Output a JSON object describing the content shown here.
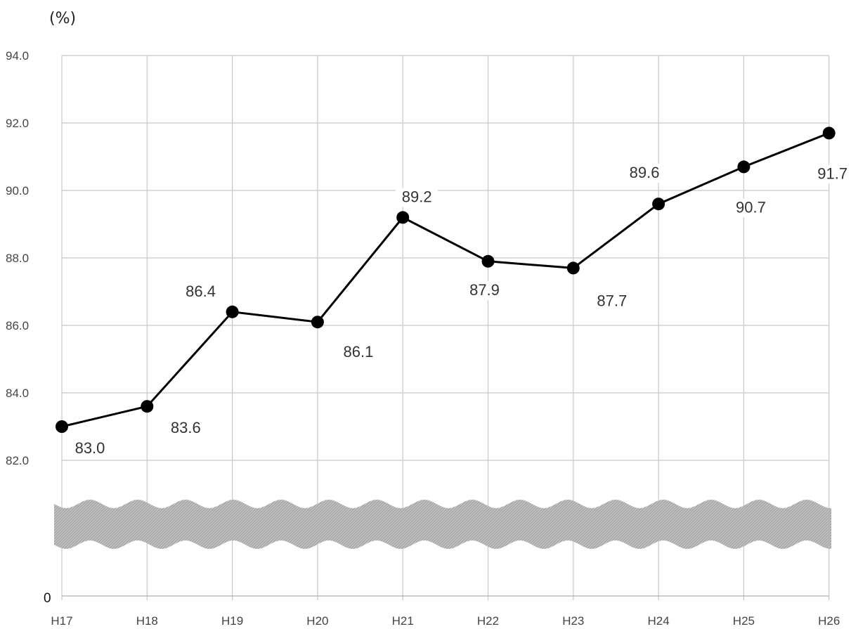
{
  "chart_data": {
    "type": "line",
    "unit_label": "(%)",
    "categories": [
      "H17",
      "H18",
      "H19",
      "H20",
      "H21",
      "H22",
      "H23",
      "H24",
      "H25",
      "H26"
    ],
    "values": [
      83.0,
      83.6,
      86.4,
      86.1,
      89.2,
      87.9,
      87.7,
      89.6,
      90.7,
      91.7
    ],
    "data_labels": [
      "83.0",
      "83.6",
      "86.4",
      "86.1",
      "89.2",
      "87.9",
      "87.7",
      "89.6",
      "90.7",
      "91.7"
    ],
    "y_ticks": [
      "82.0",
      "84.0",
      "86.0",
      "88.0",
      "90.0",
      "92.0",
      "94.0"
    ],
    "y_tick_values": [
      82,
      84,
      86,
      88,
      90,
      92,
      94
    ],
    "y_axis_origin_label": "0",
    "ylim": [
      82,
      94
    ],
    "axis_break": true,
    "grid": true,
    "line_color": "#000000"
  }
}
